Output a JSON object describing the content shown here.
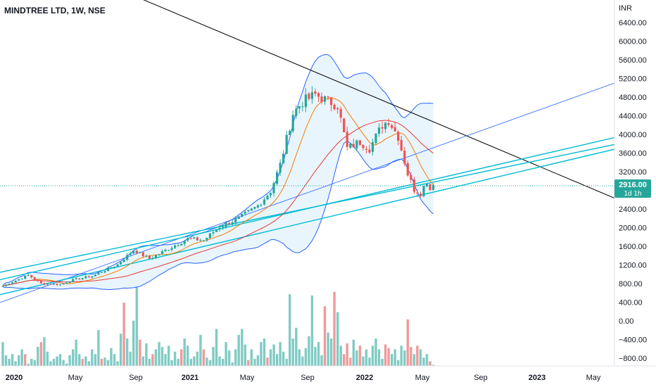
{
  "chart_data": {
    "type": "candlestick",
    "title": "MINDTREE LTD, 1W, NSE",
    "currency": "INR",
    "price_axis": {
      "ticks": [
        "6400.00",
        "6000.00",
        "5600.00",
        "5200.00",
        "4800.00",
        "4400.00",
        "4000.00",
        "3600.00",
        "3200.00",
        "2800.00",
        "2400.00",
        "2000.00",
        "1600.00",
        "1200.00",
        "800.00",
        "400.00",
        "0.00",
        "−400.00",
        "−800.00"
      ],
      "ylim": [
        -960,
        6760
      ]
    },
    "time_axis": {
      "labels": [
        "2020",
        "May",
        "Sep",
        "2021",
        "May",
        "Sep",
        "2022",
        "May",
        "Sep",
        "2023",
        "May"
      ],
      "bold": [
        "2020",
        "2021",
        "2022",
        "2023"
      ]
    },
    "last_price": {
      "value": "2916.00",
      "countdown": "1d 1h",
      "color": "#26a69a"
    },
    "colors": {
      "up": "#26a69a",
      "down": "#ef5350",
      "vol_up": "#80cbc4",
      "vol_down": "#ef9a9a",
      "bb": "#2962ff",
      "bb_fill": "#e3f2fd",
      "ma_fast": "#f57c00",
      "ma_slow": "#e53935",
      "trend_dark": "#000000",
      "trend_teal": "#00bcd4",
      "trend_blue": "#2962ff"
    },
    "keyframes": [
      {
        "w": 0,
        "p": 750
      },
      {
        "w": 8,
        "p": 980
      },
      {
        "w": 12,
        "p": 800
      },
      {
        "w": 18,
        "p": 780
      },
      {
        "w": 22,
        "p": 880
      },
      {
        "w": 28,
        "p": 960
      },
      {
        "w": 36,
        "p": 1210
      },
      {
        "w": 41,
        "p": 1520
      },
      {
        "w": 46,
        "p": 1330
      },
      {
        "w": 54,
        "p": 1620
      },
      {
        "w": 58,
        "p": 1760
      },
      {
        "w": 63,
        "p": 1730
      },
      {
        "w": 68,
        "p": 2020
      },
      {
        "w": 74,
        "p": 2200
      },
      {
        "w": 80,
        "p": 2470
      },
      {
        "w": 84,
        "p": 2780
      },
      {
        "w": 87,
        "p": 3350
      },
      {
        "w": 91,
        "p": 4450
      },
      {
        "w": 94,
        "p": 4700
      },
      {
        "w": 98,
        "p": 4850
      },
      {
        "w": 101,
        "p": 4750
      },
      {
        "w": 105,
        "p": 4620
      },
      {
        "w": 108,
        "p": 3700
      },
      {
        "w": 112,
        "p": 3840
      },
      {
        "w": 115,
        "p": 3700
      },
      {
        "w": 119,
        "p": 4200
      },
      {
        "w": 121,
        "p": 4300
      },
      {
        "w": 124,
        "p": 3950
      },
      {
        "w": 127,
        "p": 3150
      },
      {
        "w": 129,
        "p": 2820
      },
      {
        "w": 131,
        "p": 2750
      },
      {
        "w": 133,
        "p": 3000
      },
      {
        "w": 134,
        "p": 2820
      },
      {
        "w": 135,
        "p": 2916
      }
    ],
    "volumes": [
      0.24,
      0.13,
      0.1,
      0.14,
      0.08,
      0.13,
      0.18,
      0.14,
      0.06,
      0.1,
      0.09,
      0.2,
      0.24,
      0.28,
      0.16,
      0.08,
      0.1,
      0.12,
      0.14,
      0.09,
      0.06,
      0.13,
      0.18,
      0.26,
      0.14,
      0.1,
      0.12,
      0.08,
      0.18,
      0.14,
      0.34,
      0.1,
      0.11,
      0.09,
      0.19,
      0.14,
      0.08,
      0.31,
      0.57,
      0.27,
      0.16,
      0.42,
      0.71,
      0.26,
      0.12,
      0.23,
      0.1,
      0.14,
      0.18,
      0.24,
      0.2,
      0.14,
      0.21,
      0.09,
      0.16,
      0.1,
      0.18,
      0.27,
      0.21,
      0.1,
      0.12,
      0.16,
      0.3,
      0.18,
      0.11,
      0.09,
      0.2,
      0.35,
      0.12,
      0.1,
      0.24,
      0.17,
      0.07,
      0.18,
      0.3,
      0.35,
      0.22,
      0.09,
      0.18,
      0.1,
      0.13,
      0.24,
      0.27,
      0.11,
      0.18,
      0.22,
      0.14,
      0.24,
      0.16,
      0.1,
      0.64,
      0.27,
      0.36,
      0.18,
      0.12,
      0.19,
      0.29,
      0.63,
      0.2,
      0.24,
      0.13,
      0.54,
      0.32,
      0.27,
      0.66,
      0.49,
      0.21,
      0.14,
      0.23,
      0.11,
      0.26,
      0.17,
      0.21,
      0.12,
      0.18,
      0.11,
      0.21,
      0.27,
      0.18,
      0.1,
      0.22,
      0.19,
      0.14,
      0.18,
      0.09,
      0.21,
      0.17,
      0.43,
      0.2,
      0.14,
      0.21,
      0.18,
      0.11,
      0.14,
      0.08,
      0.05
    ],
    "down_volume_weeks": [
      7,
      12,
      25,
      31,
      38,
      43,
      47,
      56,
      63,
      77,
      83,
      101,
      104,
      107,
      108,
      109,
      112,
      120,
      121,
      127,
      128,
      130,
      134
    ]
  }
}
